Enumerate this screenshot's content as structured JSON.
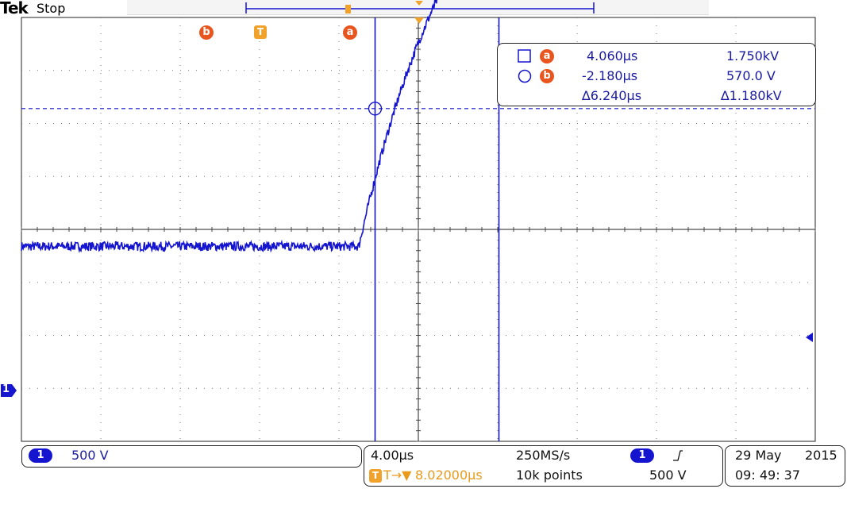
{
  "brand": "Tek",
  "acq_state": "Stop",
  "cursor_labels": {
    "a": "a",
    "b": "b",
    "trigger": "T"
  },
  "readout": {
    "a": {
      "time": "4.060µs",
      "volt": "1.750kV"
    },
    "b": {
      "time": "-2.180µs",
      "volt": "570.0 V"
    },
    "delta": {
      "time": "∆6.240µs",
      "volt": "∆1.180kV"
    }
  },
  "channel": {
    "number": "1",
    "scale": "500 V",
    "color": "#1515d0",
    "ground_label": "1"
  },
  "horizontal": {
    "scale": "4.00µs",
    "sample_rate": "250MS/s",
    "record_length": "10k points",
    "position": "8.02000µs",
    "position_prefix": "T→▼"
  },
  "trigger": {
    "source": "1",
    "slope_symbol": "⌐",
    "level": "500 V"
  },
  "datetime": {
    "date": "29 May",
    "year": "2015",
    "time": "09: 49: 37"
  },
  "chart_data": {
    "type": "line",
    "title": "",
    "xlabel": "",
    "ylabel": "",
    "x_unit": "µs",
    "y_unit": "V",
    "x_per_div": 4.0,
    "y_per_div": 500,
    "xlim": [
      -20,
      20
    ],
    "ylim": [
      -1000,
      1000
    ],
    "grid": true,
    "trace_color": "#1515d0",
    "waveform": {
      "baseline_v": -80,
      "final_v": 2080,
      "rise_start_us": -3.0,
      "tau_us": 5.1,
      "noise_v": 12
    },
    "cursors": {
      "a": {
        "time_us": 4.06,
        "volt_v": 1750
      },
      "b": {
        "time_us": -2.18,
        "volt_v": 570
      }
    },
    "trigger_marker_time_us": -1.4,
    "trigger_level_v": 500
  }
}
